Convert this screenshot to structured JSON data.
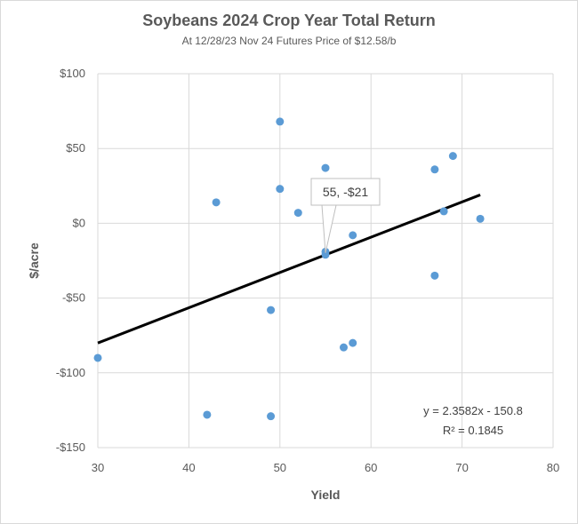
{
  "chart_data": {
    "type": "scatter",
    "title": "Soybeans 2024  Crop Year Total Return",
    "subtitle": "At 12/28/23 Nov 24 Futures Price of $12.58/b",
    "xlabel": "Yield",
    "ylabel": "$/acre",
    "xlim": [
      30,
      80
    ],
    "ylim": [
      -150,
      100
    ],
    "x_ticks": [
      30,
      40,
      50,
      60,
      70,
      80
    ],
    "y_ticks": [
      100,
      50,
      0,
      -50,
      -100,
      -150
    ],
    "x_tick_labels": [
      "30",
      "40",
      "50",
      "60",
      "70",
      "80"
    ],
    "y_tick_labels": [
      "$100",
      "$50",
      "$0",
      "-$50",
      "-$100",
      "-$150"
    ],
    "grid": true,
    "marker_color": "#5b9bd5",
    "points": [
      {
        "x": 30,
        "y": -90
      },
      {
        "x": 42,
        "y": -128
      },
      {
        "x": 43,
        "y": 14
      },
      {
        "x": 49,
        "y": -58
      },
      {
        "x": 49,
        "y": -129
      },
      {
        "x": 50,
        "y": 68
      },
      {
        "x": 50,
        "y": 23
      },
      {
        "x": 52,
        "y": 7
      },
      {
        "x": 55,
        "y": 37
      },
      {
        "x": 55,
        "y": -21
      },
      {
        "x": 55,
        "y": -19
      },
      {
        "x": 57,
        "y": -83
      },
      {
        "x": 58,
        "y": -80
      },
      {
        "x": 58,
        "y": -8
      },
      {
        "x": 67,
        "y": 36
      },
      {
        "x": 67,
        "y": -35
      },
      {
        "x": 68,
        "y": 8
      },
      {
        "x": 69,
        "y": 45
      },
      {
        "x": 72,
        "y": 3
      }
    ],
    "trendline": {
      "slope": 2.3582,
      "intercept": -150.8,
      "x_range": [
        30,
        72
      ],
      "color": "#000000",
      "equation_label": "y = 2.3582x - 150.8",
      "r2_label": "R² = 0.1845"
    },
    "callout": {
      "x": 55,
      "y": -21,
      "label": "55, -$21"
    }
  }
}
